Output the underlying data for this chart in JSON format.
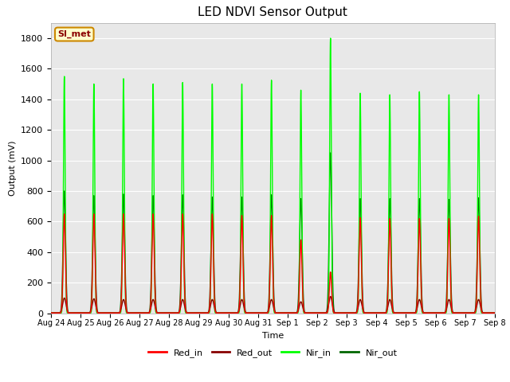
{
  "title": "LED NDVI Sensor Output",
  "xlabel": "Time",
  "ylabel": "Output (mV)",
  "ylim": [
    0,
    1900
  ],
  "yticks": [
    0,
    200,
    400,
    600,
    800,
    1000,
    1200,
    1400,
    1600,
    1800
  ],
  "x_labels": [
    "Aug 24",
    "Aug 25",
    "Aug 26",
    "Aug 27",
    "Aug 28",
    "Aug 29",
    "Aug 30",
    "Aug 31",
    "Sep 1",
    "Sep 2",
    "Sep 3",
    "Sep 4",
    "Sep 5",
    "Sep 6",
    "Sep 7",
    "Sep 8"
  ],
  "annotation_text": "SI_met",
  "annotation_bg": "#FFFFCC",
  "annotation_border": "#CC8800",
  "colors": {
    "Red_in": "#FF0000",
    "Red_out": "#880000",
    "Nir_in": "#00FF00",
    "Nir_out": "#006600"
  },
  "bg_color": "#E8E8E8",
  "num_cycles": 15,
  "red_in_peaks": [
    650,
    650,
    650,
    650,
    650,
    650,
    640,
    640,
    480,
    270,
    625,
    620,
    620,
    620,
    635
  ],
  "red_out_peaks": [
    100,
    95,
    90,
    90,
    90,
    90,
    90,
    90,
    75,
    110,
    90,
    90,
    90,
    90,
    90
  ],
  "nir_in_peaks": [
    1550,
    1500,
    1535,
    1500,
    1510,
    1500,
    1500,
    1525,
    1460,
    1800,
    1440,
    1430,
    1450,
    1430,
    1430
  ],
  "nir_out_peaks": [
    800,
    770,
    780,
    770,
    775,
    760,
    760,
    775,
    750,
    1050,
    750,
    750,
    750,
    745,
    755
  ]
}
